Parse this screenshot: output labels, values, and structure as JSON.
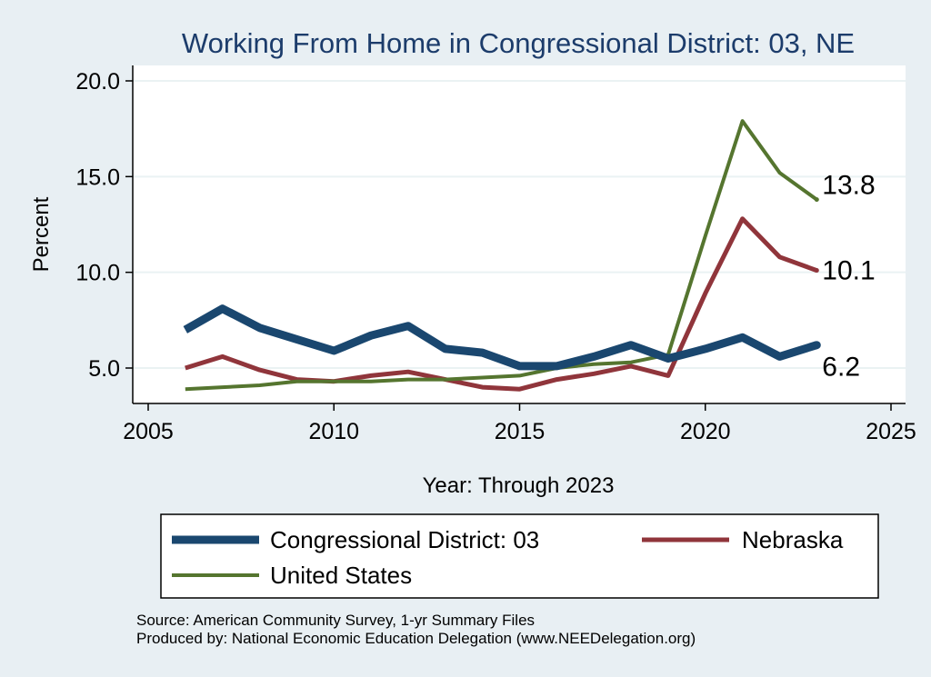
{
  "chart_data": {
    "type": "line",
    "title": "Working From Home in Congressional District: 03, NE",
    "xlabel": "Year: Through 2023",
    "ylabel": "Percent",
    "xlim": [
      2005,
      2025
    ],
    "ylim": [
      3,
      20.5
    ],
    "x_ticks": [
      2005,
      2010,
      2015,
      2020,
      2025
    ],
    "x_tick_labels": [
      "2005",
      "2010",
      "2015",
      "2020",
      "2025"
    ],
    "y_ticks": [
      5,
      10,
      15,
      20
    ],
    "y_tick_labels": [
      "5.0",
      "10.0",
      "15.0",
      "20.0"
    ],
    "grid": true,
    "legend_position": "bottom",
    "x": [
      2006,
      2007,
      2008,
      2009,
      2010,
      2011,
      2012,
      2013,
      2014,
      2015,
      2016,
      2017,
      2018,
      2019,
      2020,
      2021,
      2022,
      2023
    ],
    "series": [
      {
        "name": "Congressional District: 03",
        "color": "#1a476f",
        "values": [
          7.0,
          8.1,
          7.1,
          6.5,
          5.9,
          6.7,
          7.2,
          6.0,
          5.8,
          5.1,
          5.1,
          5.6,
          6.2,
          5.5,
          6.0,
          6.6,
          5.6,
          6.2
        ],
        "end_label": "6.2"
      },
      {
        "name": "Nebraska",
        "color": "#90353b",
        "values": [
          5.0,
          5.6,
          4.9,
          4.4,
          4.3,
          4.6,
          4.8,
          4.4,
          4.0,
          3.9,
          4.4,
          4.7,
          5.1,
          4.6,
          8.9,
          12.8,
          10.8,
          10.1
        ],
        "end_label": "10.1"
      },
      {
        "name": "United States",
        "color": "#55752f",
        "values": [
          3.9,
          4.0,
          4.1,
          4.3,
          4.3,
          4.3,
          4.4,
          4.4,
          4.5,
          4.6,
          5.0,
          5.2,
          5.3,
          5.7,
          11.9,
          17.9,
          15.2,
          13.8
        ],
        "end_label": "13.8"
      }
    ],
    "source_lines": [
      "Source: American Community Survey, 1-yr Summary Files",
      "Produced by: National Economic Education Delegation (www.NEEDelegation.org)"
    ]
  }
}
